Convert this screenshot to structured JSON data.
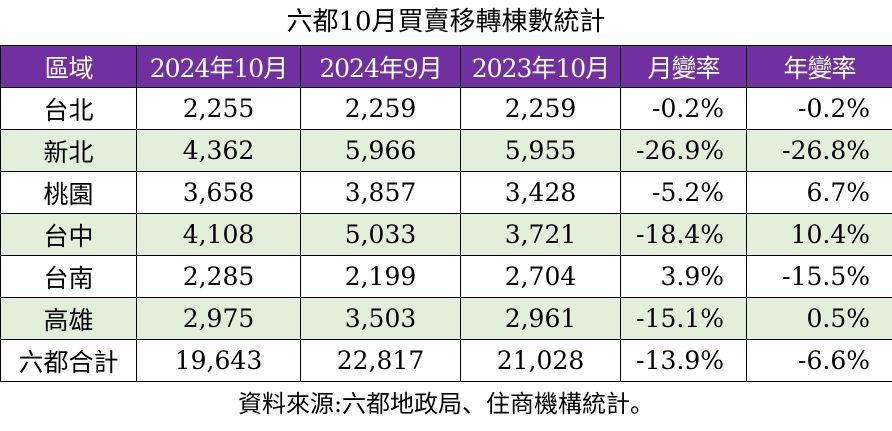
{
  "title": "六都10月買賣移轉棟數統計",
  "headers": [
    "區域",
    "2024年10月",
    "2024年9月",
    "2023年10月",
    "月變率",
    "年變率"
  ],
  "rows": [
    [
      "台北",
      "2,255",
      "2,259",
      "2,259",
      "-0.2%",
      "-0.2%"
    ],
    [
      "新北",
      "4,362",
      "5,966",
      "5,955",
      "-26.9%",
      "-26.8%"
    ],
    [
      "桃園",
      "3,658",
      "3,857",
      "3,428",
      "-5.2%",
      "6.7%"
    ],
    [
      "台中",
      "4,108",
      "5,033",
      "3,721",
      "-18.4%",
      "10.4%"
    ],
    [
      "台南",
      "2,285",
      "2,199",
      "2,704",
      "3.9%",
      "-15.5%"
    ],
    [
      "高雄",
      "2,975",
      "3,503",
      "2,961",
      "-15.1%",
      "0.5%"
    ],
    [
      "六都合計",
      "19,643",
      "22,817",
      "21,028",
      "-13.9%",
      "-6.6%"
    ]
  ],
  "source": "資料來源:六都地政局、住商機構統計。",
  "colors": {
    "header_bg": "#7030a0",
    "alt_row_bg": "#e2efda"
  }
}
